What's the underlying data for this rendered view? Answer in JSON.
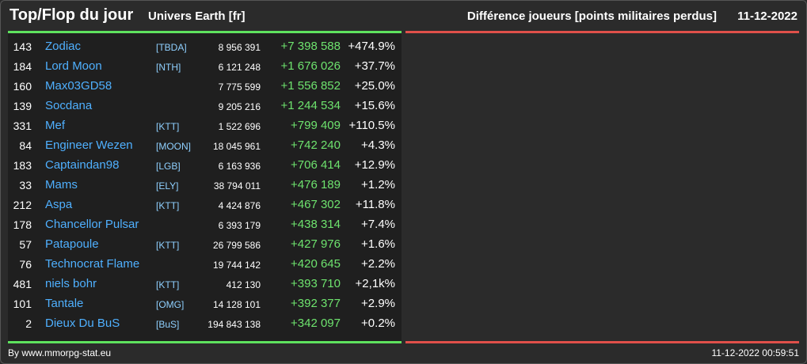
{
  "header": {
    "title": "Top/Flop du jour",
    "universe": "Univers Earth [fr]",
    "metric": "Différence joueurs [points militaires perdus]",
    "date": "11-12-2022"
  },
  "colors": {
    "accent_green": "#5ee25e",
    "accent_red": "#e0504a",
    "name_blue": "#4fb0ff",
    "diff_green": "#6ee36e"
  },
  "rows": [
    {
      "rank": "143",
      "name": "Zodiac",
      "ally": "[TBDA]",
      "points": "8 956 391",
      "diff": "+7 398 588",
      "pct": "+474.9%"
    },
    {
      "rank": "184",
      "name": "Lord Moon",
      "ally": "[NTH]",
      "points": "6 121 248",
      "diff": "+1 676 026",
      "pct": "+37.7%"
    },
    {
      "rank": "160",
      "name": "Max03GD58",
      "ally": "",
      "points": "7 775 599",
      "diff": "+1 556 852",
      "pct": "+25.0%"
    },
    {
      "rank": "139",
      "name": "Socdana",
      "ally": "",
      "points": "9 205 216",
      "diff": "+1 244 534",
      "pct": "+15.6%"
    },
    {
      "rank": "331",
      "name": "Mef",
      "ally": "[KTT]",
      "points": "1 522 696",
      "diff": "+799 409",
      "pct": "+110.5%"
    },
    {
      "rank": "84",
      "name": "Engineer Wezen",
      "ally": "[MOON]",
      "points": "18 045 961",
      "diff": "+742 240",
      "pct": "+4.3%"
    },
    {
      "rank": "183",
      "name": "Captaindan98",
      "ally": "[LGB]",
      "points": "6 163 936",
      "diff": "+706 414",
      "pct": "+12.9%"
    },
    {
      "rank": "33",
      "name": "Mams",
      "ally": "[ELY]",
      "points": "38 794 011",
      "diff": "+476 189",
      "pct": "+1.2%"
    },
    {
      "rank": "212",
      "name": "Aspa",
      "ally": "[KTT]",
      "points": "4 424 876",
      "diff": "+467 302",
      "pct": "+11.8%"
    },
    {
      "rank": "178",
      "name": "Chancellor Pulsar",
      "ally": "",
      "points": "6 393 179",
      "diff": "+438 314",
      "pct": "+7.4%"
    },
    {
      "rank": "57",
      "name": "Patapoule",
      "ally": "[KTT]",
      "points": "26 799 586",
      "diff": "+427 976",
      "pct": "+1.6%"
    },
    {
      "rank": "76",
      "name": "Technocrat Flame",
      "ally": "",
      "points": "19 744 142",
      "diff": "+420 645",
      "pct": "+2.2%"
    },
    {
      "rank": "481",
      "name": "niels bohr",
      "ally": "[KTT]",
      "points": "412 130",
      "diff": "+393 710",
      "pct": "+2,1k%"
    },
    {
      "rank": "101",
      "name": "Tantale",
      "ally": "[OMG]",
      "points": "14 128 101",
      "diff": "+392 377",
      "pct": "+2.9%"
    },
    {
      "rank": "2",
      "name": "Dieux Du BuS",
      "ally": "[BuS]",
      "points": "194 843 138",
      "diff": "+342 097",
      "pct": "+0.2%"
    }
  ],
  "footer": {
    "credit": "By www.mmorpg-stat.eu",
    "timestamp": "11-12-2022 00:59:51"
  }
}
